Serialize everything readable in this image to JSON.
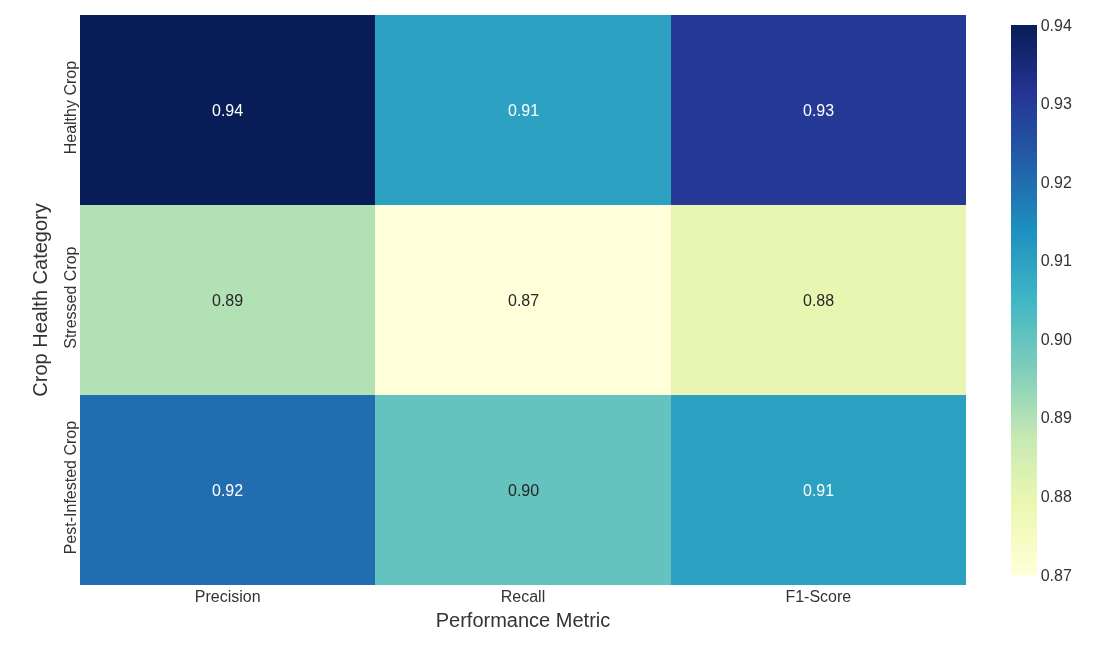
{
  "chart_data": {
    "type": "heatmap",
    "xlabel": "Performance Metric",
    "ylabel": "Crop Health Category",
    "categories": [
      "Precision",
      "Recall",
      "F1-Score"
    ],
    "y_categories": [
      "Healthy Crop",
      "Stressed Crop",
      "Pest-Infested Crop"
    ],
    "cells": [
      [
        0.94,
        0.91,
        0.93
      ],
      [
        0.89,
        0.87,
        0.88
      ],
      [
        0.92,
        0.9,
        0.91
      ]
    ],
    "cell_labels": [
      [
        "0.94",
        "0.91",
        "0.93"
      ],
      [
        "0.89",
        "0.87",
        "0.88"
      ],
      [
        "0.92",
        "0.90",
        "0.91"
      ]
    ],
    "clim": [
      0.87,
      0.94
    ],
    "cticks": [
      0.87,
      0.88,
      0.89,
      {
        "value": 0.9,
        "label": "0.90"
      },
      0.91,
      0.92,
      0.93,
      0.94
    ]
  }
}
